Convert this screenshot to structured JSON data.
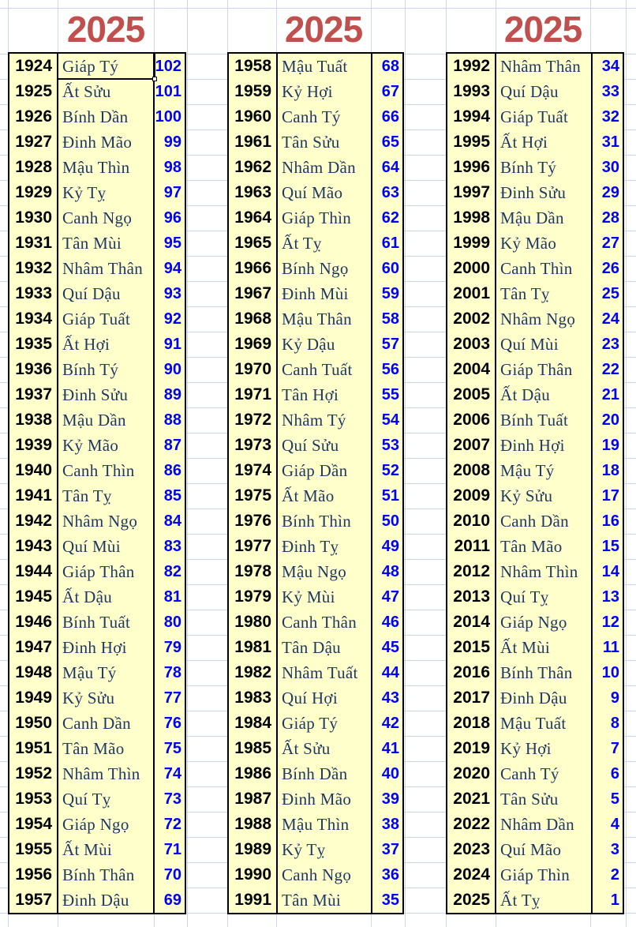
{
  "colors": {
    "title_red": "#C0504D",
    "cell_fill_yellow": "#FFFFCC",
    "year_text": "#000000",
    "zodiac_text": "#1F3864",
    "age_text": "#0000FF",
    "gridline": "#CDD7E8",
    "table_border": "#000000"
  },
  "selection": {
    "table_index": 0,
    "row_index": 0,
    "column": "zodiac",
    "cell_value": "Giáp Tý"
  },
  "tables": [
    {
      "header": "2025",
      "rows": [
        [
          "1924",
          "Giáp Tý",
          "102"
        ],
        [
          "1925",
          "Ất Sửu",
          "101"
        ],
        [
          "1926",
          "Bính Dần",
          "100"
        ],
        [
          "1927",
          "Đinh Mão",
          "99"
        ],
        [
          "1928",
          "Mậu Thìn",
          "98"
        ],
        [
          "1929",
          "Kỷ Tỵ",
          "97"
        ],
        [
          "1930",
          "Canh Ngọ",
          "96"
        ],
        [
          "1931",
          "Tân Mùi",
          "95"
        ],
        [
          "1932",
          "Nhâm Thân",
          "94"
        ],
        [
          "1933",
          "Quí Dậu",
          "93"
        ],
        [
          "1934",
          "Giáp Tuất",
          "92"
        ],
        [
          "1935",
          "Ất Hợi",
          "91"
        ],
        [
          "1936",
          "Bính Tý",
          "90"
        ],
        [
          "1937",
          "Đinh Sửu",
          "89"
        ],
        [
          "1938",
          "Mậu Dần",
          "88"
        ],
        [
          "1939",
          "Kỷ Mão",
          "87"
        ],
        [
          "1940",
          "Canh Thìn",
          "86"
        ],
        [
          "1941",
          "Tân Tỵ",
          "85"
        ],
        [
          "1942",
          "Nhâm Ngọ",
          "84"
        ],
        [
          "1943",
          "Quí Mùi",
          "83"
        ],
        [
          "1944",
          "Giáp Thân",
          "82"
        ],
        [
          "1945",
          "Ất Dậu",
          "81"
        ],
        [
          "1946",
          "Bính Tuất",
          "80"
        ],
        [
          "1947",
          "Đinh Hợi",
          "79"
        ],
        [
          "1948",
          "Mậu Tý",
          "78"
        ],
        [
          "1949",
          "Kỷ Sửu",
          "77"
        ],
        [
          "1950",
          "Canh Dần",
          "76"
        ],
        [
          "1951",
          "Tân Mão",
          "75"
        ],
        [
          "1952",
          "Nhâm Thìn",
          "74"
        ],
        [
          "1953",
          "Quí Tỵ",
          "73"
        ],
        [
          "1954",
          "Giáp Ngọ",
          "72"
        ],
        [
          "1955",
          "Ất Mùi",
          "71"
        ],
        [
          "1956",
          "Bính Thân",
          "70"
        ],
        [
          "1957",
          "Đinh Dậu",
          "69"
        ]
      ]
    },
    {
      "header": "2025",
      "rows": [
        [
          "1958",
          "Mậu Tuất",
          "68"
        ],
        [
          "1959",
          "Kỷ Hợi",
          "67"
        ],
        [
          "1960",
          "Canh Tý",
          "66"
        ],
        [
          "1961",
          "Tân Sửu",
          "65"
        ],
        [
          "1962",
          "Nhâm Dần",
          "64"
        ],
        [
          "1963",
          "Quí Mão",
          "63"
        ],
        [
          "1964",
          "Giáp Thìn",
          "62"
        ],
        [
          "1965",
          "Ất Tỵ",
          "61"
        ],
        [
          "1966",
          "Bính Ngọ",
          "60"
        ],
        [
          "1967",
          "Đinh Mùi",
          "59"
        ],
        [
          "1968",
          "Mậu Thân",
          "58"
        ],
        [
          "1969",
          "Kỷ Dậu",
          "57"
        ],
        [
          "1970",
          "Canh Tuất",
          "56"
        ],
        [
          "1971",
          "Tân Hợi",
          "55"
        ],
        [
          "1972",
          "Nhâm Tý",
          "54"
        ],
        [
          "1973",
          "Quí Sửu",
          "53"
        ],
        [
          "1974",
          "Giáp Dần",
          "52"
        ],
        [
          "1975",
          "Ất Mão",
          "51"
        ],
        [
          "1976",
          "Bính Thìn",
          "50"
        ],
        [
          "1977",
          "Đinh Tỵ",
          "49"
        ],
        [
          "1978",
          "Mậu Ngọ",
          "48"
        ],
        [
          "1979",
          "Kỷ Mùi",
          "47"
        ],
        [
          "1980",
          "Canh Thân",
          "46"
        ],
        [
          "1981",
          "Tân Dậu",
          "45"
        ],
        [
          "1982",
          "Nhâm Tuất",
          "44"
        ],
        [
          "1983",
          "Quí Hợi",
          "43"
        ],
        [
          "1984",
          "Giáp Tý",
          "42"
        ],
        [
          "1985",
          "Ất Sửu",
          "41"
        ],
        [
          "1986",
          "Bính Dần",
          "40"
        ],
        [
          "1987",
          "Đinh Mão",
          "39"
        ],
        [
          "1988",
          "Mậu Thìn",
          "38"
        ],
        [
          "1989",
          "Kỷ Tỵ",
          "37"
        ],
        [
          "1990",
          "Canh Ngọ",
          "36"
        ],
        [
          "1991",
          "Tân Mùi",
          "35"
        ]
      ]
    },
    {
      "header": "2025",
      "rows": [
        [
          "1992",
          "Nhâm Thân",
          "34"
        ],
        [
          "1993",
          "Quí Dậu",
          "33"
        ],
        [
          "1994",
          "Giáp Tuất",
          "32"
        ],
        [
          "1995",
          "Ất Hợi",
          "31"
        ],
        [
          "1996",
          "Bính Tý",
          "30"
        ],
        [
          "1997",
          "Đinh Sửu",
          "29"
        ],
        [
          "1998",
          "Mậu Dần",
          "28"
        ],
        [
          "1999",
          "Kỷ Mão",
          "27"
        ],
        [
          "2000",
          "Canh Thìn",
          "26"
        ],
        [
          "2001",
          "Tân Tỵ",
          "25"
        ],
        [
          "2002",
          "Nhâm Ngọ",
          "24"
        ],
        [
          "2003",
          "Quí Mùi",
          "23"
        ],
        [
          "2004",
          "Giáp Thân",
          "22"
        ],
        [
          "2005",
          "Ất Dậu",
          "21"
        ],
        [
          "2006",
          "Bính Tuất",
          "20"
        ],
        [
          "2007",
          "Đinh Hợi",
          "19"
        ],
        [
          "2008",
          "Mậu Tý",
          "18"
        ],
        [
          "2009",
          "Kỷ Sửu",
          "17"
        ],
        [
          "2010",
          "Canh Dần",
          "16"
        ],
        [
          "2011",
          "Tân Mão",
          "15"
        ],
        [
          "2012",
          "Nhâm Thìn",
          "14"
        ],
        [
          "2013",
          "Quí Tỵ",
          "13"
        ],
        [
          "2014",
          "Giáp Ngọ",
          "12"
        ],
        [
          "2015",
          "Ất Mùi",
          "11"
        ],
        [
          "2016",
          "Bính Thân",
          "10"
        ],
        [
          "2017",
          "Đinh Dậu",
          "9"
        ],
        [
          "2018",
          "Mậu Tuất",
          "8"
        ],
        [
          "2019",
          "Kỷ Hợi",
          "7"
        ],
        [
          "2020",
          "Canh Tý",
          "6"
        ],
        [
          "2021",
          "Tân Sửu",
          "5"
        ],
        [
          "2022",
          "Nhâm Dần",
          "4"
        ],
        [
          "2023",
          "Quí Mão",
          "3"
        ],
        [
          "2024",
          "Giáp Thìn",
          "2"
        ],
        [
          "2025",
          "Ất Tỵ",
          "1"
        ]
      ]
    }
  ]
}
